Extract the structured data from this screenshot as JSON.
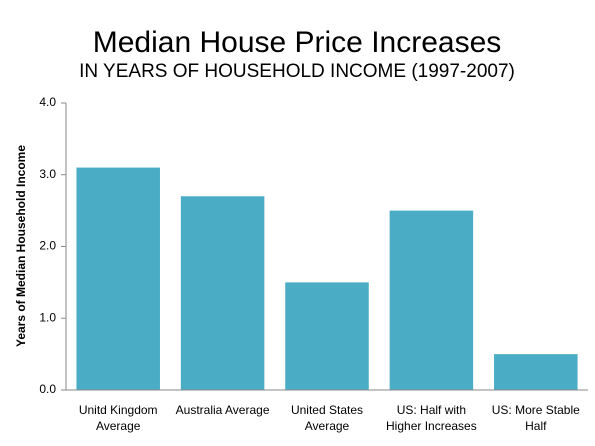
{
  "chart_data": {
    "type": "bar",
    "title": "Median House Price Increases",
    "subtitle": "IN YEARS OF HOUSEHOLD INCOME (1997-2007)",
    "y_label": "Years of Median Household Income",
    "categories": [
      "Unitd Kingdom Average",
      "Australia Average",
      "United States Average",
      "US: Half with Higher Increases",
      "US: More Stable Half"
    ],
    "values": [
      3.1,
      2.7,
      1.5,
      2.5,
      0.5
    ],
    "color": "#4bacc6",
    "ylim": [
      0,
      4
    ],
    "yticks": [
      {
        "value": 0,
        "label": "0.0"
      },
      {
        "value": 1,
        "label": "1.0"
      },
      {
        "value": 2,
        "label": "2.0"
      },
      {
        "value": 3,
        "label": "3.0"
      },
      {
        "value": 4,
        "label": "4.0"
      }
    ],
    "grid": false
  }
}
